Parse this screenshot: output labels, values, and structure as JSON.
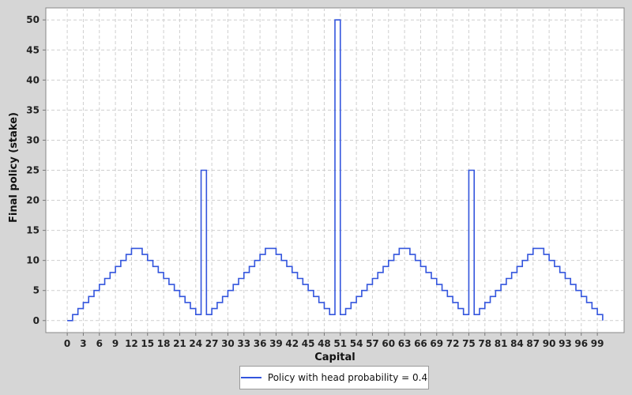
{
  "chart_data": {
    "type": "line",
    "step": true,
    "xlabel": "Capital",
    "ylabel": "Final policy (stake)",
    "xlim": [
      -4,
      104
    ],
    "ylim": [
      -2,
      52
    ],
    "x_ticks": [
      0,
      3,
      6,
      9,
      12,
      15,
      18,
      21,
      24,
      27,
      30,
      33,
      36,
      39,
      42,
      45,
      48,
      51,
      54,
      57,
      60,
      63,
      66,
      69,
      72,
      75,
      78,
      81,
      84,
      87,
      90,
      93,
      96,
      99
    ],
    "y_ticks": [
      0,
      5,
      10,
      15,
      20,
      25,
      30,
      35,
      40,
      45,
      50
    ],
    "grid": true,
    "legend_position": "bottom-center",
    "series": [
      {
        "name": "Policy with head probability = 0.4",
        "color": "#3355dd",
        "x": [
          0,
          1,
          2,
          3,
          4,
          5,
          6,
          7,
          8,
          9,
          10,
          11,
          12,
          13,
          14,
          15,
          16,
          17,
          18,
          19,
          20,
          21,
          22,
          23,
          24,
          25,
          26,
          27,
          28,
          29,
          30,
          31,
          32,
          33,
          34,
          35,
          36,
          37,
          38,
          39,
          40,
          41,
          42,
          43,
          44,
          45,
          46,
          47,
          48,
          49,
          50,
          51,
          52,
          53,
          54,
          55,
          56,
          57,
          58,
          59,
          60,
          61,
          62,
          63,
          64,
          65,
          66,
          67,
          68,
          69,
          70,
          71,
          72,
          73,
          74,
          75,
          76,
          77,
          78,
          79,
          80,
          81,
          82,
          83,
          84,
          85,
          86,
          87,
          88,
          89,
          90,
          91,
          92,
          93,
          94,
          95,
          96,
          97,
          98,
          99,
          100
        ],
        "y": [
          0,
          1,
          2,
          3,
          4,
          5,
          6,
          7,
          8,
          9,
          10,
          11,
          12,
          12,
          11,
          10,
          9,
          8,
          7,
          6,
          5,
          4,
          3,
          2,
          1,
          25,
          1,
          2,
          3,
          4,
          5,
          6,
          7,
          8,
          9,
          10,
          11,
          12,
          12,
          11,
          10,
          9,
          8,
          7,
          6,
          5,
          4,
          3,
          2,
          1,
          50,
          1,
          2,
          3,
          4,
          5,
          6,
          7,
          8,
          9,
          10,
          11,
          12,
          12,
          11,
          10,
          9,
          8,
          7,
          6,
          5,
          4,
          3,
          2,
          1,
          25,
          1,
          2,
          3,
          4,
          5,
          6,
          7,
          8,
          9,
          10,
          11,
          12,
          12,
          11,
          10,
          9,
          8,
          7,
          6,
          5,
          4,
          3,
          2,
          1,
          0
        ]
      }
    ]
  }
}
